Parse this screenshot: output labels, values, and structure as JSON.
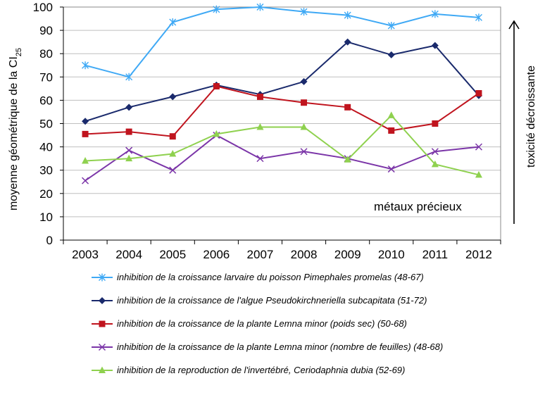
{
  "chart_data": {
    "type": "line",
    "ylabel_main": "moyenne géométrique de la CI",
    "ylabel_sub": "25",
    "right_label": "toxicité décroissante",
    "annotation": "métaux précieux",
    "ylim": [
      0,
      100
    ],
    "yticks": [
      0,
      10,
      20,
      30,
      40,
      50,
      60,
      70,
      80,
      90,
      100
    ],
    "categories": [
      "2003",
      "2004",
      "2005",
      "2006",
      "2007",
      "2008",
      "2009",
      "2010",
      "2011",
      "2012"
    ],
    "series": [
      {
        "name": "inhibition de la croissance larvaire du poisson Pimephales promelas (48-67)",
        "color": "#3fa9f5",
        "marker": "asterisk",
        "values": [
          75,
          70,
          93.5,
          99,
          100,
          98,
          96.5,
          92,
          97,
          95.5
        ]
      },
      {
        "name": "inhibition de la croissance de l'algue Pseudokirchneriella subcapitata (51-72)",
        "color": "#1a2a6c",
        "marker": "diamond",
        "values": [
          51,
          57,
          61.5,
          66.5,
          62.5,
          68,
          85,
          79.5,
          83.5,
          62
        ]
      },
      {
        "name": "inhibition de la croissance de la plante Lemna minor (poids sec) (50-68)",
        "color": "#c0141e",
        "marker": "square",
        "values": [
          45.5,
          46.5,
          44.5,
          66,
          61.5,
          59,
          57,
          47,
          50,
          63
        ]
      },
      {
        "name": "inhibition de la croissance de la plante Lemna minor (nombre de feuilles) (48-68)",
        "color": "#7b35a8",
        "marker": "x",
        "values": [
          25.5,
          38.5,
          30,
          45,
          35,
          38,
          35,
          30.5,
          38,
          40
        ]
      },
      {
        "name": "inhibition de la reproduction de l'invertébré, Ceriodaphnia dubia (52-69)",
        "color": "#8fd14f",
        "marker": "triangle",
        "values": [
          34,
          35,
          37,
          45.5,
          48.5,
          48.5,
          34.5,
          53.5,
          32.5,
          28
        ]
      }
    ]
  }
}
